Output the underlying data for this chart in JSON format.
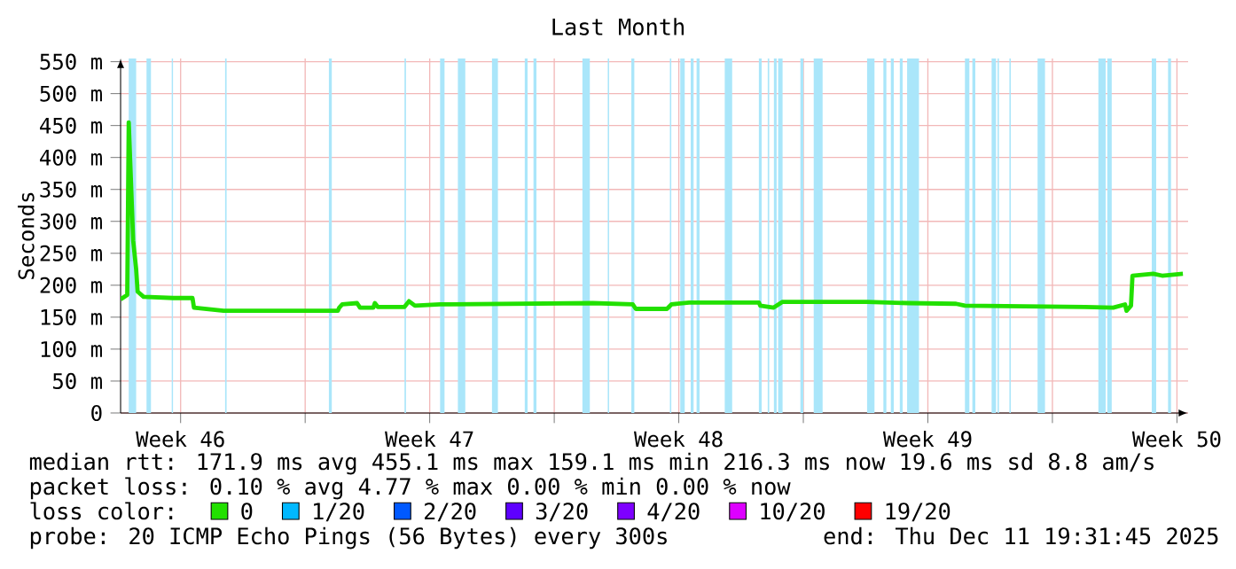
{
  "chart_data": {
    "type": "line",
    "title": "Last Month",
    "ylabel": "Seconds",
    "xlim": [
      "2025-11-11T19:31",
      "2025-12-11T19:31"
    ],
    "xticks": [
      {
        "value": "2025-11-13T12:00",
        "label": "Week 46"
      },
      {
        "value": "2025-11-17T00:00",
        "label": null
      },
      {
        "value": "2025-11-20T12:00",
        "label": "Week 47"
      },
      {
        "value": "2025-11-24T00:00",
        "label": null
      },
      {
        "value": "2025-11-27T12:00",
        "label": "Week 48"
      },
      {
        "value": "2025-12-01T00:00",
        "label": null
      },
      {
        "value": "2025-12-04T12:00",
        "label": "Week 49"
      },
      {
        "value": "2025-12-08T00:00",
        "label": null
      },
      {
        "value": "2025-12-11T12:00",
        "label": "Week 50"
      }
    ],
    "ylim": [
      0,
      555
    ],
    "yticks": [
      0,
      {
        "value": 50,
        "label": "50 m"
      },
      {
        "value": 100,
        "label": "100 m"
      },
      {
        "value": 150,
        "label": "150 m"
      },
      {
        "value": 200,
        "label": "200 m"
      },
      {
        "value": 250,
        "label": "250 m"
      },
      {
        "value": 300,
        "label": "300 m"
      },
      {
        "value": 350,
        "label": "350 m"
      },
      {
        "value": 400,
        "label": "400 m"
      },
      {
        "value": 450,
        "label": "450 m"
      },
      {
        "value": 500,
        "label": "500 m"
      },
      {
        "value": 550,
        "label": "550 m"
      }
    ],
    "grid": true,
    "legend": "bottom",
    "legend_title": "loss color:",
    "x": [
      "2025-11-11T19:31",
      "2025-11-12T00:00",
      "2025-11-12T01:00",
      "2025-11-12T04:00",
      "2025-11-12T06:00",
      "2025-11-12T07:00",
      "2025-11-12T11:00",
      "2025-11-13T07:00",
      "2025-11-13T20:00",
      "2025-11-13T21:00",
      "2025-11-14T17:00",
      "2025-11-17T22:00",
      "2025-11-17T23:00",
      "2025-11-18T01:00",
      "2025-11-18T11:00",
      "2025-11-18T13:00",
      "2025-11-18T22:00",
      "2025-11-18T23:00",
      "2025-11-19T01:00",
      "2025-11-19T19:00",
      "2025-11-19T22:00",
      "2025-11-20T02:00",
      "2025-11-20T19:00",
      "2025-11-25T02:00",
      "2025-11-26T05:00",
      "2025-11-26T07:00",
      "2025-11-27T04:00",
      "2025-11-27T07:00",
      "2025-11-27T19:00",
      "2025-11-29T18:00",
      "2025-11-29T19:00",
      "2025-11-30T04:00",
      "2025-11-30T10:00",
      "2025-12-02T19:00",
      "2025-12-03T23:00",
      "2025-12-05T07:00",
      "2025-12-05T13:00",
      "2025-12-08T22:00",
      "2025-12-09T17:00",
      "2025-12-10T01:00",
      "2025-12-10T02:00",
      "2025-12-10T05:00",
      "2025-12-10T06:00",
      "2025-12-10T20:00",
      "2025-12-11T02:00",
      "2025-12-11T16:00"
    ],
    "series": [
      {
        "name": "0",
        "color": "#22e000",
        "values": [
          178,
          185,
          455,
          270,
          225,
          190,
          182,
          180,
          180,
          165,
          160,
          160,
          165,
          170,
          172,
          165,
          165,
          172,
          166,
          166,
          175,
          168,
          170,
          172,
          170,
          163,
          163,
          170,
          173,
          173,
          168,
          165,
          174,
          174,
          172,
          171,
          168,
          166,
          165,
          170,
          160,
          168,
          215,
          218,
          215,
          218
        ]
      },
      {
        "name": "1/20",
        "color": "#00b8ff",
        "values": [
          null,
          null,
          null,
          null,
          null,
          null,
          null,
          null,
          null,
          null,
          null,
          null,
          null,
          null,
          null,
          null,
          null,
          null,
          null,
          null,
          null,
          null,
          null,
          null,
          null,
          null,
          null,
          null,
          null,
          null,
          null,
          null,
          null,
          null,
          null,
          null,
          null,
          null,
          null,
          null,
          null,
          null,
          null,
          null,
          null,
          null
        ]
      },
      {
        "name": "2/20",
        "color": "#0059ff",
        "values": [
          null,
          null,
          null,
          null,
          null,
          null,
          null,
          null,
          null,
          null,
          null,
          null,
          null,
          null,
          null,
          null,
          null,
          null,
          null,
          null,
          null,
          null,
          null,
          null,
          null,
          null,
          null,
          null,
          null,
          null,
          null,
          null,
          null,
          null,
          null,
          null,
          null,
          null,
          null,
          null,
          null,
          null,
          null,
          null,
          null,
          null
        ]
      },
      {
        "name": "3/20",
        "color": "#5e00ff",
        "values": [
          null,
          null,
          null,
          null,
          null,
          null,
          null,
          null,
          null,
          null,
          null,
          null,
          null,
          null,
          null,
          null,
          null,
          null,
          null,
          null,
          null,
          null,
          null,
          null,
          null,
          null,
          null,
          null,
          null,
          null,
          null,
          null,
          null,
          null,
          null,
          null,
          null,
          null,
          null,
          null,
          null,
          null,
          null,
          null,
          null,
          null
        ]
      },
      {
        "name": "4/20",
        "color": "#7e00ff",
        "values": [
          null,
          null,
          null,
          null,
          null,
          null,
          null,
          null,
          null,
          null,
          null,
          null,
          null,
          null,
          null,
          null,
          null,
          null,
          null,
          null,
          null,
          null,
          null,
          null,
          null,
          null,
          null,
          null,
          null,
          null,
          null,
          null,
          null,
          null,
          null,
          null,
          null,
          null,
          null,
          null,
          null,
          null,
          null,
          null,
          null,
          null
        ]
      },
      {
        "name": "10/20",
        "color": "#dd00ff",
        "values": [
          null,
          null,
          null,
          null,
          null,
          null,
          null,
          null,
          null,
          null,
          null,
          null,
          null,
          null,
          null,
          null,
          null,
          null,
          null,
          null,
          null,
          null,
          null,
          null,
          null,
          null,
          null,
          null,
          null,
          null,
          null,
          null,
          null,
          null,
          null,
          null,
          null,
          null,
          null,
          null,
          null,
          null,
          null,
          null,
          null,
          null
        ]
      },
      {
        "name": "19/20",
        "color": "#ff0000",
        "values": [
          null,
          null,
          null,
          null,
          null,
          null,
          null,
          null,
          null,
          null,
          null,
          null,
          null,
          null,
          null,
          null,
          null,
          null,
          null,
          null,
          null,
          null,
          null,
          null,
          null,
          null,
          null,
          null,
          null,
          null,
          null,
          null,
          null,
          null,
          null,
          null,
          null,
          null,
          null,
          null,
          null,
          null,
          null,
          null,
          null,
          null
        ]
      }
    ],
    "bands": [
      {
        "axis": "x",
        "from": "2025-11-12T01:00",
        "to": "2025-11-12T06:00",
        "color": "#aae6fa"
      },
      {
        "axis": "x",
        "from": "2025-11-12T13:00",
        "to": "2025-11-12T16:00",
        "color": "#aae6fa"
      },
      {
        "axis": "x",
        "from": "2025-11-13T06:00",
        "to": "2025-11-13T07:00",
        "color": "#aae6fa"
      },
      {
        "axis": "x",
        "from": "2025-11-14T18:00",
        "to": "2025-11-14T19:00",
        "color": "#aae6fa"
      },
      {
        "axis": "x",
        "from": "2025-11-17T16:00",
        "to": "2025-11-17T18:00",
        "color": "#aae6fa"
      },
      {
        "axis": "x",
        "from": "2025-11-19T19:00",
        "to": "2025-11-19T20:00",
        "color": "#aae6fa"
      },
      {
        "axis": "x",
        "from": "2025-11-20T19:00",
        "to": "2025-11-20T22:00",
        "color": "#aae6fa"
      },
      {
        "axis": "x",
        "from": "2025-11-21T07:00",
        "to": "2025-11-21T12:00",
        "color": "#aae6fa"
      },
      {
        "axis": "x",
        "from": "2025-11-22T06:00",
        "to": "2025-11-22T10:00",
        "color": "#aae6fa"
      },
      {
        "axis": "x",
        "from": "2025-11-23T04:00",
        "to": "2025-11-23T06:00",
        "color": "#aae6fa"
      },
      {
        "axis": "x",
        "from": "2025-11-23T10:00",
        "to": "2025-11-23T12:00",
        "color": "#aae6fa"
      },
      {
        "axis": "x",
        "from": "2025-11-24T19:00",
        "to": "2025-11-25T00:00",
        "color": "#aae6fa"
      },
      {
        "axis": "x",
        "from": "2025-11-25T12:00",
        "to": "2025-11-25T13:00",
        "color": "#aae6fa"
      },
      {
        "axis": "x",
        "from": "2025-11-26T04:00",
        "to": "2025-11-26T06:00",
        "color": "#aae6fa"
      },
      {
        "axis": "x",
        "from": "2025-11-27T06:00",
        "to": "2025-11-27T07:00",
        "color": "#aae6fa"
      },
      {
        "axis": "x",
        "from": "2025-11-27T13:00",
        "to": "2025-11-27T16:00",
        "color": "#aae6fa"
      },
      {
        "axis": "x",
        "from": "2025-11-27T20:00",
        "to": "2025-11-27T22:00",
        "color": "#aae6fa"
      },
      {
        "axis": "x",
        "from": "2025-11-28T00:00",
        "to": "2025-11-28T02:00",
        "color": "#aae6fa"
      },
      {
        "axis": "x",
        "from": "2025-11-28T19:00",
        "to": "2025-11-29T00:00",
        "color": "#aae6fa"
      },
      {
        "axis": "x",
        "from": "2025-11-29T18:00",
        "to": "2025-11-29T20:00",
        "color": "#aae6fa"
      },
      {
        "axis": "x",
        "from": "2025-11-30T00:00",
        "to": "2025-11-30T01:00",
        "color": "#aae6fa"
      },
      {
        "axis": "x",
        "from": "2025-11-30T04:00",
        "to": "2025-11-30T06:00",
        "color": "#aae6fa"
      },
      {
        "axis": "x",
        "from": "2025-11-30T07:00",
        "to": "2025-11-30T10:00",
        "color": "#aae6fa"
      },
      {
        "axis": "x",
        "from": "2025-11-30T22:00",
        "to": "2025-12-01T00:00",
        "color": "#aae6fa"
      },
      {
        "axis": "x",
        "from": "2025-12-01T07:00",
        "to": "2025-12-01T13:00",
        "color": "#aae6fa"
      },
      {
        "axis": "x",
        "from": "2025-12-02T19:00",
        "to": "2025-12-03T00:00",
        "color": "#aae6fa"
      },
      {
        "axis": "x",
        "from": "2025-12-03T06:00",
        "to": "2025-12-03T08:00",
        "color": "#aae6fa"
      },
      {
        "axis": "x",
        "from": "2025-12-03T11:00",
        "to": "2025-12-03T13:00",
        "color": "#aae6fa"
      },
      {
        "axis": "x",
        "from": "2025-12-03T17:00",
        "to": "2025-12-03T19:00",
        "color": "#aae6fa"
      },
      {
        "axis": "x",
        "from": "2025-12-03T22:00",
        "to": "2025-12-04T06:00",
        "color": "#aae6fa"
      },
      {
        "axis": "x",
        "from": "2025-12-05T13:00",
        "to": "2025-12-05T16:00",
        "color": "#aae6fa"
      },
      {
        "axis": "x",
        "from": "2025-12-05T18:00",
        "to": "2025-12-05T20:00",
        "color": "#aae6fa"
      },
      {
        "axis": "x",
        "from": "2025-12-06T07:00",
        "to": "2025-12-06T10:00",
        "color": "#aae6fa"
      },
      {
        "axis": "x",
        "from": "2025-12-06T11:00",
        "to": "2025-12-06T12:00",
        "color": "#aae6fa"
      },
      {
        "axis": "x",
        "from": "2025-12-06T19:00",
        "to": "2025-12-06T20:00",
        "color": "#aae6fa"
      },
      {
        "axis": "x",
        "from": "2025-12-07T14:00",
        "to": "2025-12-07T19:00",
        "color": "#aae6fa"
      },
      {
        "axis": "x",
        "from": "2025-12-09T07:00",
        "to": "2025-12-09T12:00",
        "color": "#aae6fa"
      },
      {
        "axis": "x",
        "from": "2025-12-09T13:00",
        "to": "2025-12-09T16:00",
        "color": "#aae6fa"
      },
      {
        "axis": "x",
        "from": "2025-12-10T19:00",
        "to": "2025-12-10T22:00",
        "color": "#aae6fa"
      },
      {
        "axis": "x",
        "from": "2025-12-11T06:00",
        "to": "2025-12-11T08:00",
        "color": "#aae6fa"
      }
    ],
    "annotations": [
      "median rtt: 171.9 ms avg 455.1 ms max 159.1 ms min 216.3 ms now 19.6 ms sd 8.8 am/s",
      "packet loss: 0.10 % avg 4.77 % max 0.00 % min 0.00 % now",
      "probe: 20 ICMP Echo Pings (56 Bytes) every 300s",
      "end: Thu Dec 11 19:31:45 2025"
    ]
  }
}
